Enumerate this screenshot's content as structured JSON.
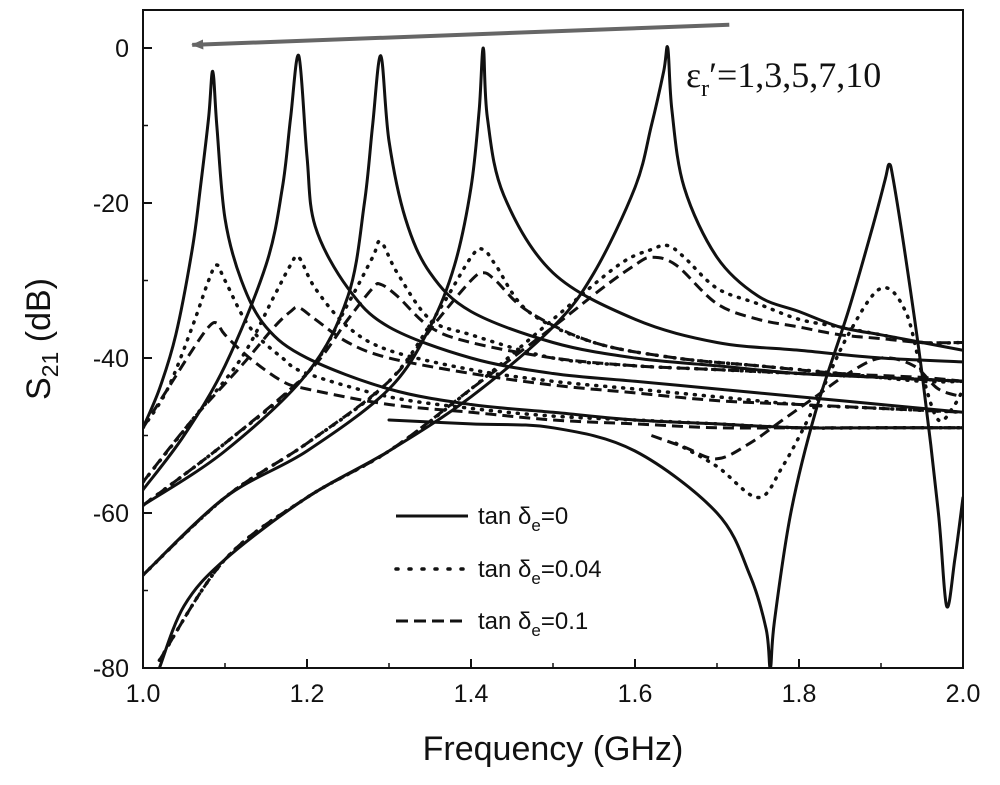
{
  "chart_data": {
    "type": "line",
    "xlabel": "Frequency (GHz)",
    "ylabel_main": "S",
    "ylabel_sub": "21",
    "ylabel_unit": " (dB)",
    "xlim": [
      1.0,
      2.0
    ],
    "ylim": [
      -80,
      5
    ],
    "xticks": [
      1.0,
      1.2,
      1.4,
      1.6,
      1.8,
      2.0
    ],
    "xtick_labels": [
      "1.0",
      "1.2",
      "1.4",
      "1.6",
      "1.8",
      "2.0"
    ],
    "yticks": [
      0,
      -20,
      -40,
      -60,
      -80
    ],
    "ytick_labels": [
      "0",
      "-20",
      "-40",
      "-60",
      "-80"
    ],
    "grid": false,
    "annotation": {
      "prefix": "ε",
      "sub": "r",
      "suffix": "′=1,3,5,7,10",
      "arrow_from": [
        1.715,
        3.0
      ],
      "arrow_to": [
        1.06,
        0.4
      ]
    },
    "legend": {
      "placement": "bottom-center",
      "entries": [
        {
          "style": "solid",
          "prefix": "tan δ",
          "sub": "e",
          "suffix": "=0"
        },
        {
          "style": "dotted",
          "prefix": "tan δ",
          "sub": "e",
          "suffix": "=0.04"
        },
        {
          "style": "dashed",
          "prefix": "tan δ",
          "sub": "e",
          "suffix": "=0.1"
        }
      ]
    },
    "series": [
      {
        "eps": 1,
        "style": "solid",
        "x": [
          1.0,
          1.02,
          1.04,
          1.06,
          1.07,
          1.08,
          1.085,
          1.09,
          1.1,
          1.12,
          1.15,
          1.2,
          1.3,
          1.4,
          1.5,
          1.6,
          1.7,
          1.8,
          1.9,
          2.0
        ],
        "y": [
          -49,
          -44,
          -37,
          -26,
          -18,
          -9,
          -3,
          -10,
          -22,
          -30,
          -36,
          -40,
          -44,
          -46,
          -47,
          -48,
          -48.5,
          -49,
          -49,
          -49
        ]
      },
      {
        "eps": 3,
        "style": "solid",
        "x": [
          1.0,
          1.05,
          1.1,
          1.15,
          1.17,
          1.18,
          1.19,
          1.2,
          1.21,
          1.25,
          1.3,
          1.4,
          1.5,
          1.6,
          1.7,
          1.8,
          1.9,
          2.0
        ],
        "y": [
          -57,
          -50,
          -41,
          -28,
          -18,
          -9,
          -1,
          -14,
          -23,
          -31,
          -36,
          -40,
          -42,
          -43,
          -44,
          -45,
          -46,
          -47
        ]
      },
      {
        "eps": 5,
        "style": "solid",
        "x": [
          1.0,
          1.1,
          1.2,
          1.25,
          1.27,
          1.28,
          1.29,
          1.3,
          1.32,
          1.35,
          1.4,
          1.5,
          1.6,
          1.7,
          1.8,
          1.9,
          2.0
        ],
        "y": [
          -59,
          -52,
          -42,
          -32,
          -20,
          -10,
          -1,
          -12,
          -22,
          -29,
          -34,
          -38,
          -40,
          -41,
          -42,
          -42.5,
          -43
        ]
      },
      {
        "eps": 7,
        "style": "solid",
        "x": [
          1.0,
          1.1,
          1.2,
          1.3,
          1.35,
          1.38,
          1.4,
          1.41,
          1.415,
          1.42,
          1.44,
          1.5,
          1.6,
          1.7,
          1.8,
          1.9,
          2.0
        ],
        "y": [
          -68,
          -58,
          -52,
          -44,
          -36,
          -28,
          -18,
          -8,
          0,
          -9,
          -19,
          -29,
          -35,
          -38,
          -39,
          -40,
          -40.5
        ]
      },
      {
        "eps": 10,
        "style": "solid",
        "x": [
          1.02,
          1.05,
          1.1,
          1.2,
          1.3,
          1.4,
          1.5,
          1.55,
          1.6,
          1.62,
          1.635,
          1.64,
          1.645,
          1.66,
          1.7,
          1.75,
          1.8,
          1.85,
          1.9,
          1.95,
          2.0
        ],
        "y": [
          -80,
          -72,
          -66,
          -58,
          -52,
          -45,
          -36,
          -29,
          -18,
          -10,
          -3,
          0,
          -8,
          -18,
          -27,
          -32,
          -34,
          -36,
          -37,
          -38,
          -39
        ]
      },
      {
        "eps": 0,
        "style": "solid",
        "x": [
          1.3,
          1.4,
          1.5,
          1.6,
          1.7,
          1.74,
          1.76,
          1.765,
          1.77,
          1.79,
          1.82,
          1.86,
          1.89,
          1.905,
          1.91,
          1.915,
          1.93,
          1.95,
          1.97,
          1.98,
          1.99,
          2.0
        ],
        "y": [
          -48,
          -48.5,
          -49,
          -52,
          -60,
          -68,
          -75,
          -80,
          -74,
          -60,
          -47,
          -34,
          -23,
          -17,
          -15,
          -17,
          -27,
          -42,
          -60,
          -72,
          -66,
          -58
        ]
      },
      {
        "eps": 1,
        "style": "dotted",
        "x": [
          1.0,
          1.03,
          1.06,
          1.08,
          1.09,
          1.1,
          1.13,
          1.17,
          1.2,
          1.3,
          1.4,
          1.5,
          1.6,
          1.7,
          1.8,
          1.9,
          2.0
        ],
        "y": [
          -49,
          -44,
          -36,
          -30,
          -28,
          -30,
          -36,
          -40,
          -42,
          -45,
          -46.5,
          -47.5,
          -48,
          -48.5,
          -49,
          -49,
          -49
        ]
      },
      {
        "eps": 3,
        "style": "dotted",
        "x": [
          1.0,
          1.06,
          1.12,
          1.16,
          1.18,
          1.19,
          1.21,
          1.25,
          1.3,
          1.4,
          1.5,
          1.6,
          1.7,
          1.8,
          1.9,
          2.0
        ],
        "y": [
          -56,
          -48,
          -40,
          -32,
          -28,
          -27,
          -31,
          -36,
          -39,
          -41.5,
          -43,
          -44,
          -45,
          -46,
          -46.5,
          -47
        ]
      },
      {
        "eps": 5,
        "style": "dotted",
        "x": [
          1.0,
          1.1,
          1.2,
          1.25,
          1.28,
          1.29,
          1.31,
          1.35,
          1.4,
          1.5,
          1.6,
          1.7,
          1.8,
          1.9,
          2.0
        ],
        "y": [
          -59,
          -51,
          -42,
          -33,
          -27,
          -25,
          -29,
          -35,
          -37,
          -40,
          -41,
          -41.5,
          -42,
          -42.5,
          -43
        ]
      },
      {
        "eps": 7,
        "style": "dotted",
        "x": [
          1.0,
          1.1,
          1.2,
          1.3,
          1.36,
          1.4,
          1.415,
          1.43,
          1.47,
          1.55,
          1.65,
          1.75,
          1.85,
          1.95,
          2.0
        ],
        "y": [
          -68,
          -58,
          -51,
          -43,
          -34,
          -27,
          -26,
          -28,
          -34,
          -38,
          -40,
          -41,
          -42,
          -43,
          -43
        ]
      },
      {
        "eps": 10,
        "style": "dotted",
        "x": [
          1.02,
          1.1,
          1.2,
          1.3,
          1.4,
          1.5,
          1.58,
          1.62,
          1.64,
          1.66,
          1.7,
          1.75,
          1.8,
          1.85,
          1.9,
          1.95,
          2.0
        ],
        "y": [
          -79,
          -66,
          -58,
          -52,
          -44,
          -35,
          -28,
          -26,
          -25.5,
          -27,
          -31,
          -33,
          -35,
          -36,
          -37,
          -38,
          -38
        ]
      },
      {
        "eps": 0,
        "style": "dotted",
        "x": [
          1.65,
          1.7,
          1.75,
          1.78,
          1.82,
          1.86,
          1.9,
          1.93,
          1.95,
          1.97,
          1.99,
          2.0
        ],
        "y": [
          -51,
          -54,
          -58,
          -54,
          -46,
          -37,
          -31,
          -34,
          -42,
          -48,
          -46,
          -44
        ]
      },
      {
        "eps": 1,
        "style": "dashed",
        "x": [
          1.0,
          1.03,
          1.06,
          1.08,
          1.09,
          1.1,
          1.13,
          1.17,
          1.2,
          1.3,
          1.4,
          1.5,
          1.6,
          1.7,
          1.8,
          1.9,
          2.0
        ],
        "y": [
          -49,
          -44,
          -39,
          -36,
          -35.5,
          -37,
          -40,
          -43,
          -44,
          -46,
          -47,
          -48,
          -48.5,
          -49,
          -49,
          -49,
          -49
        ]
      },
      {
        "eps": 3,
        "style": "dashed",
        "x": [
          1.0,
          1.06,
          1.12,
          1.16,
          1.18,
          1.19,
          1.21,
          1.25,
          1.3,
          1.4,
          1.5,
          1.6,
          1.7,
          1.8,
          1.9,
          2.0
        ],
        "y": [
          -56,
          -48,
          -41,
          -36,
          -34,
          -33.5,
          -35,
          -38,
          -40,
          -42,
          -43.5,
          -44.5,
          -45.5,
          -46,
          -46.5,
          -47
        ]
      },
      {
        "eps": 5,
        "style": "dashed",
        "x": [
          1.0,
          1.1,
          1.2,
          1.25,
          1.28,
          1.29,
          1.31,
          1.35,
          1.4,
          1.5,
          1.6,
          1.7,
          1.8,
          1.9,
          2.0
        ],
        "y": [
          -59,
          -51,
          -42,
          -35,
          -31,
          -30.5,
          -32,
          -36,
          -38,
          -40,
          -41,
          -41.5,
          -42,
          -42.5,
          -43
        ]
      },
      {
        "eps": 7,
        "style": "dashed",
        "x": [
          1.0,
          1.1,
          1.2,
          1.3,
          1.36,
          1.4,
          1.415,
          1.43,
          1.47,
          1.55,
          1.65,
          1.75,
          1.85,
          1.95,
          2.0
        ],
        "y": [
          -68,
          -58,
          -51,
          -43,
          -35,
          -30,
          -29,
          -30,
          -34,
          -38,
          -40,
          -41,
          -42,
          -42.5,
          -43
        ]
      },
      {
        "eps": 10,
        "style": "dashed",
        "x": [
          1.02,
          1.1,
          1.2,
          1.3,
          1.4,
          1.5,
          1.56,
          1.6,
          1.62,
          1.65,
          1.7,
          1.75,
          1.8,
          1.85,
          1.9,
          1.95,
          2.0
        ],
        "y": [
          -79,
          -66,
          -58,
          -52,
          -44,
          -36,
          -31,
          -28,
          -27,
          -28,
          -33,
          -35,
          -36,
          -37,
          -37.5,
          -38,
          -38
        ]
      },
      {
        "eps": 0,
        "style": "dashed",
        "x": [
          1.62,
          1.66,
          1.7,
          1.74,
          1.78,
          1.82,
          1.86,
          1.9,
          1.94,
          1.97,
          2.0
        ],
        "y": [
          -50,
          -51.5,
          -53,
          -51,
          -48,
          -45,
          -42,
          -40,
          -41,
          -44,
          -45
        ]
      }
    ]
  }
}
